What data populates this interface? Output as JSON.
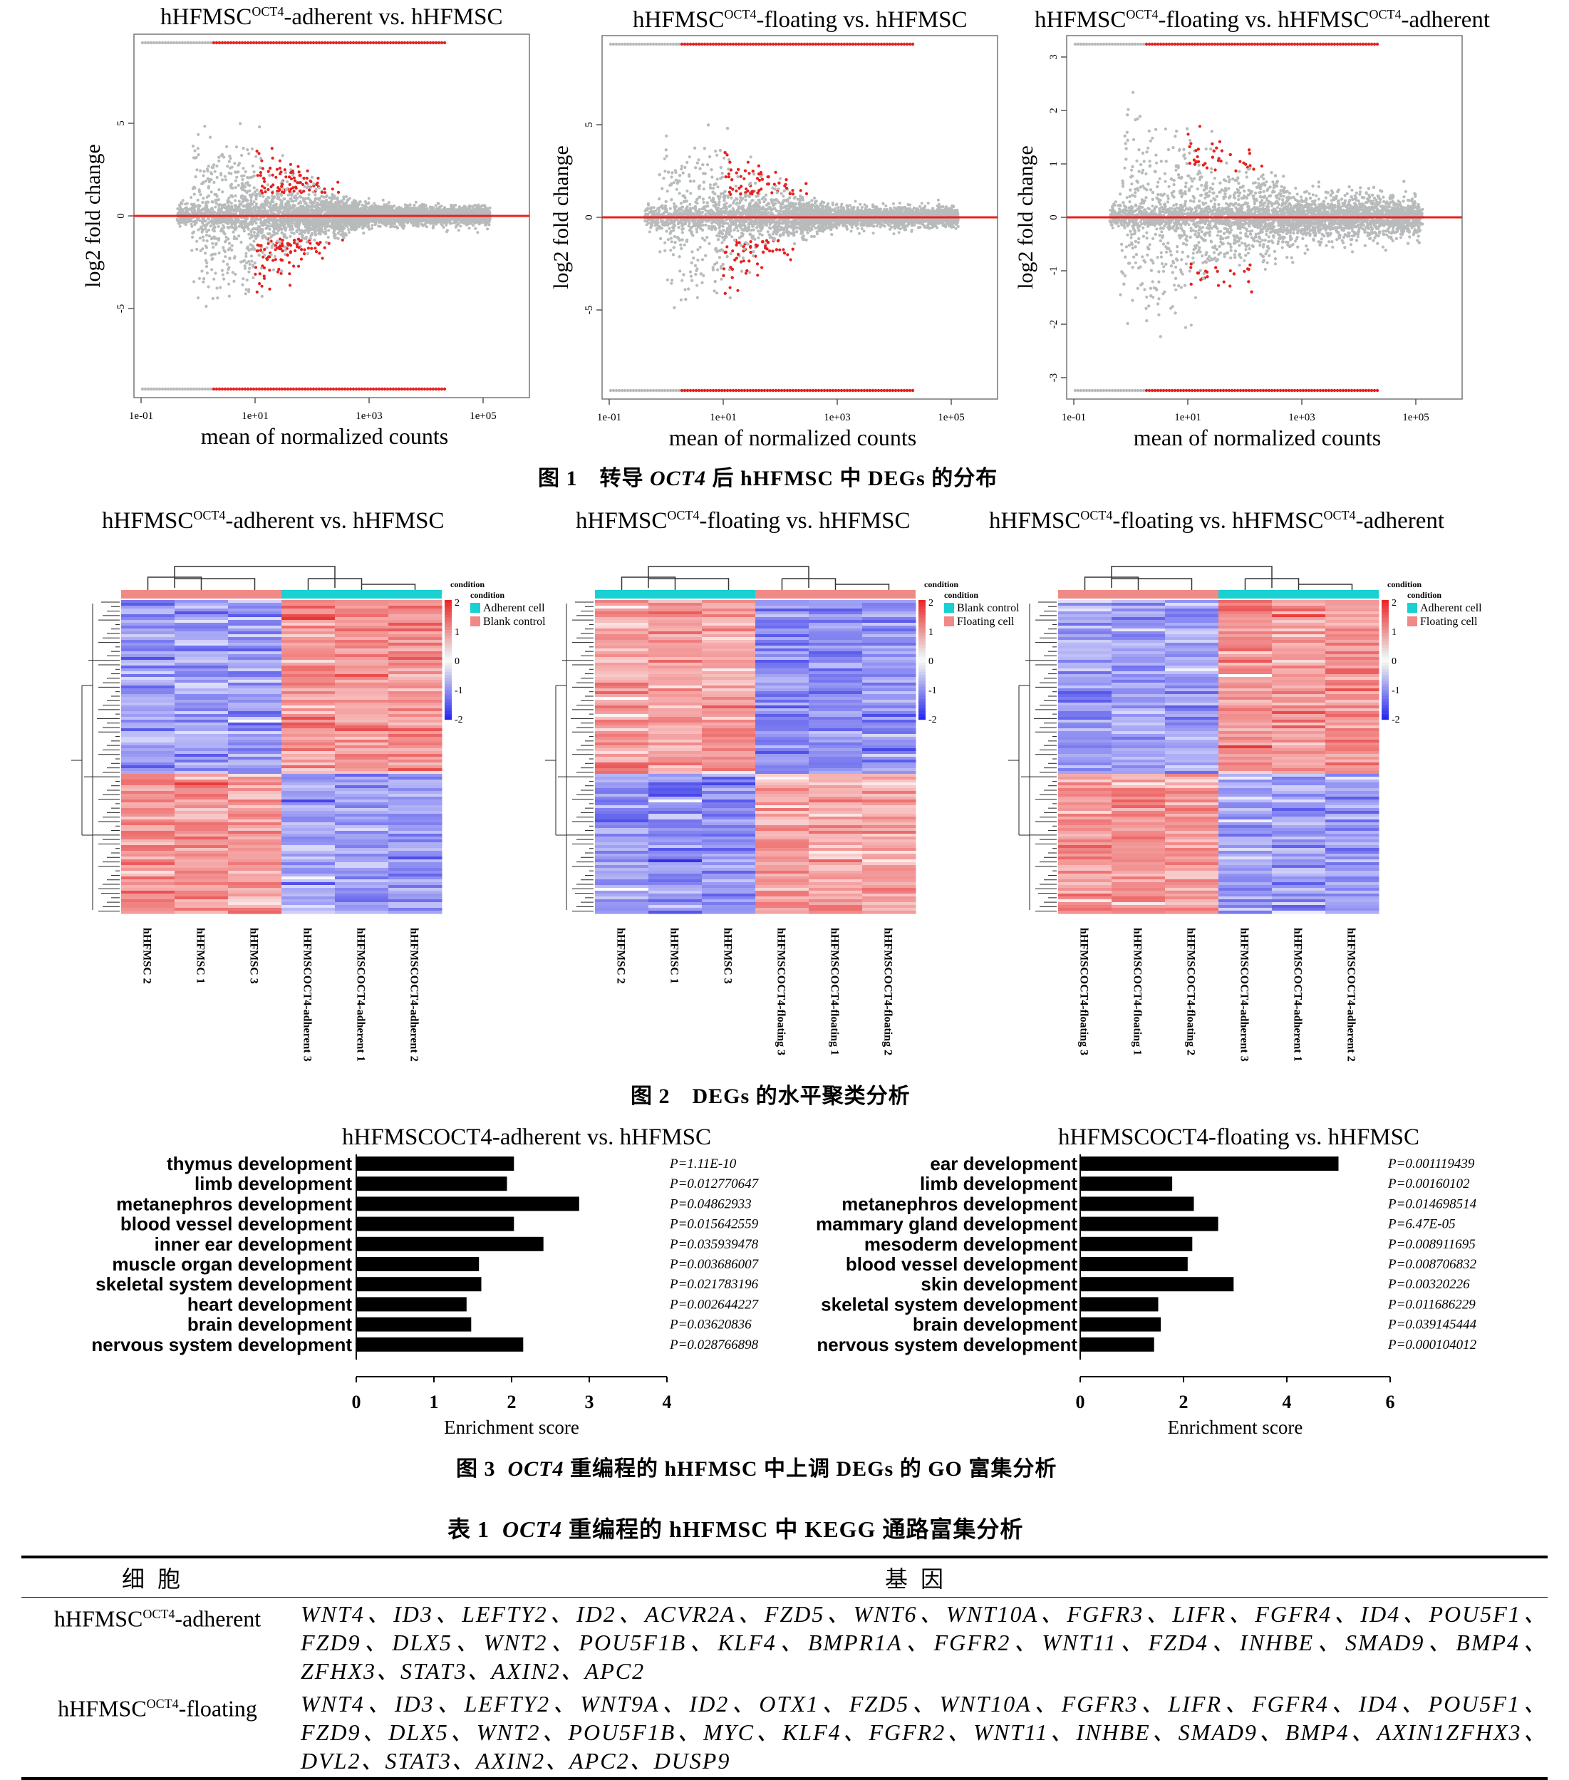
{
  "fig1": {
    "panels": [
      {
        "title_pre": "hHFMSC",
        "title_sup": "OCT4",
        "title_post": "-adherent vs. hHFMSC",
        "yticks": [
          "5",
          "0",
          "-5"
        ]
      },
      {
        "title_pre": "hHFMSC",
        "title_sup": "OCT4",
        "title_post": "-floating vs. hHFMSC",
        "yticks": [
          "5",
          "0",
          "-5"
        ]
      },
      {
        "title_pre": "hHFMSC",
        "title_sup": "OCT4",
        "title_post": "-floating vs. hHFMSC",
        "title_sup2": "OCT4",
        "title_post2": "-adherent",
        "yticks": [
          "3",
          "2",
          "1",
          "0",
          "-1",
          "-2",
          "-3"
        ]
      }
    ],
    "ylabel": "log2 fold change",
    "xlabel": "mean of normalized counts",
    "xticks": [
      "1e-01",
      "1e+01",
      "1e+03",
      "1e+05"
    ],
    "caption_prefix": "图 1　转导",
    "caption_gene": "OCT4",
    "caption_suffix": "后 hHFMSC 中 DEGs 的分布"
  },
  "fig2": {
    "panels": [
      {
        "title_pre": "hHFMSC",
        "title_sup": "OCT4",
        "title_post": "-adherent vs. hHFMSC",
        "legend": [
          "Adherent cell",
          "Blank control"
        ],
        "cols": [
          "hHFMSC 2",
          "hHFMSC 1",
          "hHFMSC 3",
          "hHFMSCOCT4-adherent 3",
          "hHFMSCOCT4-adherent 1",
          "hHFMSCOCT4-adherent 2"
        ]
      },
      {
        "title_pre": "hHFMSC",
        "title_sup": "OCT4",
        "title_post": "-floating vs. hHFMSC",
        "legend": [
          "Blank control",
          "Floating cell"
        ],
        "cols": [
          "hHFMSC 2",
          "hHFMSC 1",
          "hHFMSC 3",
          "hHFMSCOCT4-floating 3",
          "hHFMSCOCT4-floating 1",
          "hHFMSCOCT4-floating 2"
        ]
      },
      {
        "title_pre": "hHFMSC",
        "title_sup": "OCT4",
        "title_post": "-floating vs. hHFMSC",
        "title_sup2": "OCT4",
        "title_post2": "-adherent",
        "legend": [
          "Adherent cell",
          "Floating cell"
        ],
        "cols": [
          "hHFMSCOCT4-floating 3",
          "hHFMSCOCT4-floating 1",
          "hHFMSCOCT4-floating 2",
          "hHFMSCOCT4-adherent 3",
          "hHFMSCOCT4-adherent 1",
          "hHFMSCOCT4-adherent 2"
        ]
      }
    ],
    "condition_label": "condition",
    "scale_ticks": [
      "2",
      "1",
      "0",
      "-1",
      "-2"
    ],
    "caption": "图 2　DEGs 的水平聚类分析"
  },
  "fig3": {
    "xlabel": "Enrichment score",
    "caption_prefix": "图 3",
    "caption_gene": "OCT4",
    "caption_suffix": "重编程的 hHFMSC 中上调 DEGs 的 GO 富集分析"
  },
  "chart_data": [
    {
      "type": "bar",
      "title": "hHFMSCOCT4-adherent vs. hHFMSC",
      "xlabel": "Enrichment score",
      "xlim": [
        0,
        4
      ],
      "xticks": [
        "0",
        "1",
        "2",
        "3",
        "4"
      ],
      "categories": [
        "thymus development",
        "limb development",
        "metanephros development",
        "blood vessel development",
        "inner ear development",
        "muscle organ development",
        "skeletal system development",
        "heart development",
        "brain development",
        "nervous system development"
      ],
      "values": [
        2.03,
        1.94,
        2.87,
        2.03,
        2.41,
        1.58,
        1.61,
        1.42,
        1.48,
        2.15
      ],
      "pvalues": [
        "P=1.11E-10",
        "P=0.012770647",
        "P=0.04862933",
        "P=0.015642559",
        "P=0.035939478",
        "P=0.003686007",
        "P=0.021783196",
        "P=0.002644227",
        "P=0.03620836",
        "P=0.028766898"
      ]
    },
    {
      "type": "bar",
      "title": "hHFMSCOCT4-floating vs. hHFMSC",
      "xlabel": "Enrichment score",
      "xlim": [
        0,
        6
      ],
      "xticks": [
        "0",
        "2",
        "4",
        "6"
      ],
      "categories": [
        "ear development",
        "limb development",
        "metanephros development",
        "mammary gland development",
        "mesoderm development",
        "blood vessel development",
        "skin development",
        "skeletal system development",
        "brain development",
        "nervous system development"
      ],
      "values": [
        5.0,
        1.78,
        2.2,
        2.67,
        2.17,
        2.08,
        2.97,
        1.51,
        1.56,
        1.43
      ],
      "pvalues": [
        "P=0.001119439",
        "P=0.00160102",
        "P=0.014698514",
        "P=6.47E-05",
        "P=0.008911695",
        "P=0.008706832",
        "P=0.00320226",
        "P=0.011686229",
        "P=0.039145444",
        "P=0.000104012"
      ]
    }
  ],
  "table1": {
    "title_prefix": "表 1",
    "title_gene": "OCT4",
    "title_suffix": "重编程的 hHFMSC 中 KEGG 通路富集分析",
    "headers": [
      "细胞",
      "基因"
    ],
    "rows": [
      {
        "cell_pre": "hHFMSC",
        "cell_sup": "OCT4",
        "cell_post": "-adherent",
        "genes": "WNT4、ID3、LEFTY2、ID2、ACVR2A、FZD5、WNT6、WNT10A、FGFR3、LIFR、FGFR4、ID4、POU5F1、FZD9、DLX5、WNT2、POU5F1B、KLF4、BMPR1A、FGFR2、WNT11、FZD4、INHBE、SMAD9、BMP4、ZFHX3、STAT3、AXIN2、APC2"
      },
      {
        "cell_pre": "hHFMSC",
        "cell_sup": "OCT4",
        "cell_post": "-floating",
        "genes": "WNT4、ID3、LEFTY2、WNT9A、ID2、OTX1、FZD5、WNT10A、FGFR3、LIFR、FGFR4、ID4、POU5F1、FZD9、DLX5、WNT2、POU5F1B、MYC、KLF4、FGFR2、WNT11、INHBE、SMAD9、BMP4、AXIN1ZFHX3、DVL2、STAT3、AXIN2、APC2、DUSP9"
      }
    ]
  },
  "colors": {
    "up": "#e8201e",
    "grey": "#b8bbbb",
    "hm_red": "#ef3535",
    "hm_blue": "#2828e6",
    "teal": "#19d0d2",
    "salmon": "#f08a86"
  }
}
